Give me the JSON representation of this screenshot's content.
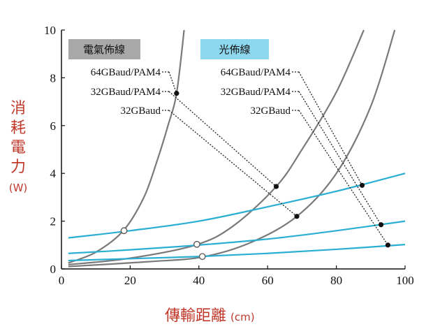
{
  "chart_data": {
    "type": "line",
    "xlabel": "傳輸距離",
    "xunit": "(cm)",
    "ylabel": "消耗電力",
    "yunit": "(W)",
    "xlim": [
      0,
      100
    ],
    "ylim": [
      0,
      10
    ],
    "xticks": [
      "0",
      "20",
      "40",
      "60",
      "80",
      "100"
    ],
    "yticks": [
      "0",
      "2",
      "4",
      "6",
      "8",
      "10"
    ],
    "grid": false,
    "colors": {
      "electrical": "#7a7a7a",
      "optical": "#2aaed2",
      "axis_title": "#c0392b",
      "electrical_box": "#a8a8a8",
      "optical_box": "#8ed8ef"
    },
    "groups": [
      {
        "title": "電氣佈線",
        "labels": [
          "64GBaud/PAM4",
          "32GBaud/PAM4",
          "32GBaud"
        ]
      },
      {
        "title": "光佈線",
        "labels": [
          "64GBaud/PAM4",
          "32GBaud/PAM4",
          "32GBaud"
        ]
      }
    ],
    "series": [
      {
        "group": "electrical",
        "x": [
          2,
          10,
          18,
          24,
          28,
          31,
          33.5,
          35.7
        ],
        "y": [
          0.25,
          0.7,
          1.6,
          3.0,
          4.6,
          6.0,
          7.35,
          10
        ]
      },
      {
        "group": "electrical",
        "x": [
          2,
          20,
          39,
          50,
          62.5,
          70,
          80,
          88
        ],
        "y": [
          0.18,
          0.45,
          1.0,
          1.8,
          3.45,
          5.0,
          7.4,
          10
        ]
      },
      {
        "group": "electrical",
        "x": [
          2,
          25,
          41,
          55,
          68.5,
          80,
          90,
          97
        ],
        "y": [
          0.1,
          0.3,
          0.5,
          1.1,
          2.2,
          4.0,
          6.8,
          10
        ]
      },
      {
        "group": "optical",
        "x": [
          2,
          20,
          40,
          60,
          80,
          100
        ],
        "y": [
          1.3,
          1.6,
          2.0,
          2.6,
          3.25,
          4.0
        ]
      },
      {
        "group": "optical",
        "x": [
          2,
          20,
          40,
          60,
          80,
          100
        ],
        "y": [
          0.65,
          0.8,
          1.0,
          1.25,
          1.6,
          2.0
        ]
      },
      {
        "group": "optical",
        "x": [
          2,
          20,
          40,
          60,
          80,
          100
        ],
        "y": [
          0.35,
          0.43,
          0.52,
          0.65,
          0.82,
          1.02
        ]
      }
    ],
    "crossings": [
      {
        "x": 18.2,
        "y": 1.6
      },
      {
        "x": 39.4,
        "y": 1.03
      },
      {
        "x": 41.0,
        "y": 0.52
      }
    ],
    "marked_points": [
      {
        "group": "electrical",
        "label_index": 0,
        "x": 33.5,
        "y": 7.35
      },
      {
        "group": "electrical",
        "label_index": 1,
        "x": 62.5,
        "y": 3.45
      },
      {
        "group": "electrical",
        "label_index": 2,
        "x": 68.5,
        "y": 2.2
      },
      {
        "group": "optical",
        "label_index": 0,
        "x": 87.5,
        "y": 3.5
      },
      {
        "group": "optical",
        "label_index": 1,
        "x": 93.0,
        "y": 1.85
      },
      {
        "group": "optical",
        "label_index": 2,
        "x": 95.0,
        "y": 1.0
      }
    ]
  }
}
